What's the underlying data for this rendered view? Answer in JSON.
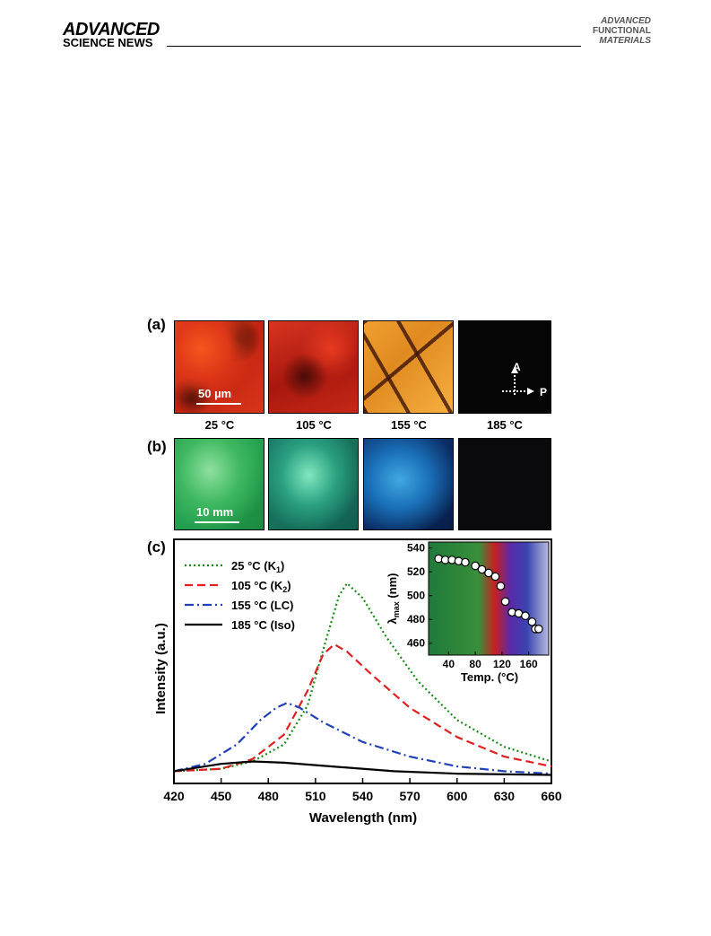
{
  "header": {
    "left_brand_line1": "ADVANCED",
    "left_brand_line2": "SCIENCE NEWS",
    "right_brand_line1": "ADVANCED",
    "right_brand_line2": "FUNCTIONAL",
    "right_brand_line3": "MATERIALS"
  },
  "figure": {
    "panel_a": {
      "label": "(a)",
      "scale_bar": "50 µm",
      "temperatures": [
        "25 °C",
        "105 °C",
        "155 °C",
        "185 °C"
      ],
      "polarizer_A": "A",
      "polarizer_P": "P"
    },
    "panel_b": {
      "label": "(b)",
      "scale_bar": "10 mm"
    },
    "panel_c": {
      "label": "(c)"
    }
  },
  "chart_data": [
    {
      "type": "line",
      "xlabel": "Wavelength (nm)",
      "ylabel": "Intensity (a.u.)",
      "xlim": [
        420,
        660
      ],
      "ylim": [
        0,
        1
      ],
      "xticks": [
        "420",
        "450",
        "480",
        "510",
        "540",
        "570",
        "600",
        "630",
        "660"
      ],
      "legend_position": "top-left",
      "series": [
        {
          "name": "25 °C (K",
          "sub": "1",
          "suffix": ")",
          "color": "#1a8a1a",
          "style": "dotted",
          "x": [
            420,
            450,
            470,
            490,
            505,
            515,
            525,
            530,
            540,
            555,
            575,
            600,
            630,
            660
          ],
          "y": [
            0.05,
            0.06,
            0.09,
            0.16,
            0.32,
            0.55,
            0.77,
            0.82,
            0.76,
            0.6,
            0.42,
            0.26,
            0.15,
            0.09
          ]
        },
        {
          "name": "105 °C (K",
          "sub": "2",
          "suffix": ")",
          "color": "#e02020",
          "style": "dashed",
          "x": [
            420,
            450,
            470,
            490,
            505,
            515,
            522,
            530,
            545,
            570,
            600,
            630,
            660
          ],
          "y": [
            0.05,
            0.06,
            0.1,
            0.2,
            0.38,
            0.53,
            0.57,
            0.54,
            0.45,
            0.31,
            0.19,
            0.11,
            0.07
          ]
        },
        {
          "name": "155 °C (LC)",
          "sub": "",
          "suffix": "",
          "color": "#2040b8",
          "style": "dashdot",
          "x": [
            420,
            440,
            460,
            475,
            485,
            492,
            500,
            515,
            540,
            570,
            600,
            630,
            660
          ],
          "y": [
            0.05,
            0.08,
            0.16,
            0.26,
            0.31,
            0.33,
            0.31,
            0.25,
            0.17,
            0.11,
            0.07,
            0.05,
            0.04
          ]
        },
        {
          "name": "185 °C (Iso)",
          "sub": "",
          "suffix": "",
          "color": "#000000",
          "style": "solid",
          "x": [
            420,
            450,
            470,
            490,
            520,
            560,
            600,
            660
          ],
          "y": [
            0.05,
            0.08,
            0.09,
            0.085,
            0.07,
            0.05,
            0.04,
            0.035
          ]
        }
      ]
    },
    {
      "type": "scatter",
      "xlabel": "Temp. (°C)",
      "ylabel_main": "λ",
      "ylabel_sub": "max",
      "ylabel_suffix": " (nm)",
      "xlim": [
        10,
        190
      ],
      "ylim": [
        450,
        545
      ],
      "xticks": [
        "40",
        "80",
        "120",
        "160"
      ],
      "yticks": [
        "540",
        "520",
        "500",
        "480",
        "460"
      ],
      "background_colors": [
        "#1f7a3a",
        "#3a8f3a",
        "#c82020",
        "#5a2aa8",
        "#3a44b0",
        "#b8bce0"
      ],
      "x": [
        25,
        35,
        45,
        55,
        65,
        80,
        90,
        100,
        110,
        118,
        125,
        135,
        145,
        155,
        165,
        170,
        175
      ],
      "y": [
        531,
        530,
        530,
        529,
        528,
        525,
        522,
        519,
        516,
        508,
        495,
        486,
        485,
        483,
        478,
        472,
        472
      ]
    }
  ]
}
